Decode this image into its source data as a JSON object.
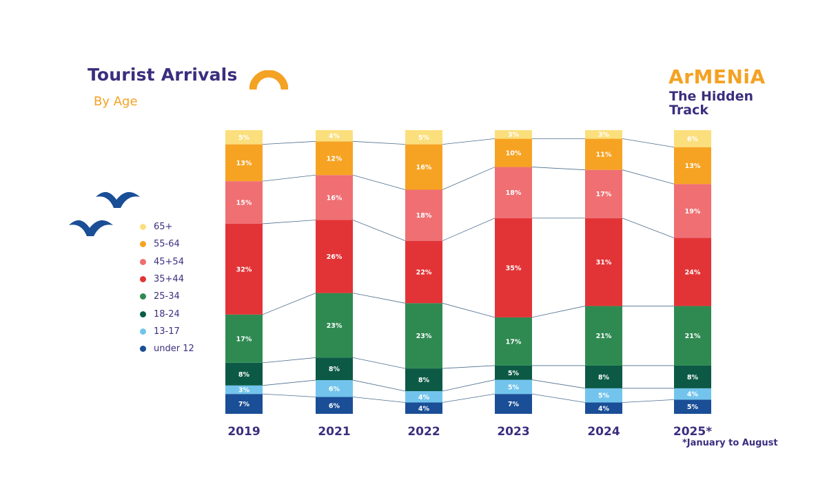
{
  "header": {
    "title": "Tourist Arrivals",
    "subtitle": "By Age"
  },
  "brand": {
    "name": "ArMENiA",
    "tagline": "The Hidden Track"
  },
  "footnote": "*January to August",
  "colors": {
    "title": "#3b2e7e",
    "accent": "#f4a223",
    "connector": "#4a6c8c"
  },
  "decorations": [
    "orange-arch-icon",
    "blue-bird-icon",
    "blue-bird-icon"
  ],
  "chart_data": {
    "type": "bar",
    "stacked": true,
    "normalized_percent": true,
    "categories": [
      "2019",
      "2021",
      "2022",
      "2023",
      "2024",
      "2025*"
    ],
    "legend_position": "left",
    "grid": false,
    "series": [
      {
        "name": "under 12",
        "color": "#1a4e96",
        "values": [
          7,
          6,
          4,
          7,
          4,
          5
        ]
      },
      {
        "name": "13-17",
        "color": "#72c4ec",
        "values": [
          3,
          6,
          4,
          5,
          5,
          4
        ]
      },
      {
        "name": "18-24",
        "color": "#0c5a45",
        "values": [
          8,
          8,
          8,
          5,
          8,
          8
        ]
      },
      {
        "name": "25-34",
        "color": "#2f8a52",
        "values": [
          17,
          23,
          23,
          17,
          21,
          21
        ]
      },
      {
        "name": "35+44",
        "color": "#e23436",
        "values": [
          32,
          26,
          22,
          35,
          31,
          24
        ]
      },
      {
        "name": "45+54",
        "color": "#ef6f72",
        "values": [
          15,
          16,
          18,
          18,
          17,
          19
        ]
      },
      {
        "name": "55-64",
        "color": "#f6a323",
        "values": [
          13,
          12,
          16,
          10,
          11,
          13
        ]
      },
      {
        "name": "65+",
        "color": "#fbdf7d",
        "values": [
          5,
          4,
          5,
          3,
          3,
          6
        ]
      }
    ]
  }
}
